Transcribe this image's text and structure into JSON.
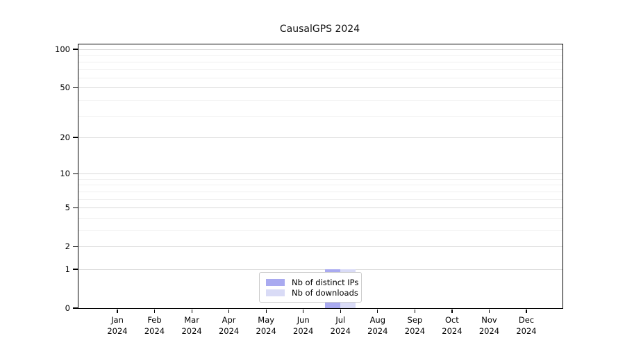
{
  "chart_data": {
    "type": "bar",
    "title": "CausalGPS 2024",
    "x_ticks": [
      {
        "month": "Jan",
        "year": "2024"
      },
      {
        "month": "Feb",
        "year": "2024"
      },
      {
        "month": "Mar",
        "year": "2024"
      },
      {
        "month": "Apr",
        "year": "2024"
      },
      {
        "month": "May",
        "year": "2024"
      },
      {
        "month": "Jun",
        "year": "2024"
      },
      {
        "month": "Jul",
        "year": "2024"
      },
      {
        "month": "Aug",
        "year": "2024"
      },
      {
        "month": "Sep",
        "year": "2024"
      },
      {
        "month": "Oct",
        "year": "2024"
      },
      {
        "month": "Nov",
        "year": "2024"
      },
      {
        "month": "Dec",
        "year": "2024"
      }
    ],
    "series": [
      {
        "name": "Nb of distinct IPs",
        "color": "#a9aaf0",
        "values": [
          0,
          0,
          0,
          0,
          0,
          0,
          1,
          0,
          0,
          0,
          0,
          0
        ]
      },
      {
        "name": "Nb of downloads",
        "color": "#d9dbf6",
        "values": [
          0,
          0,
          0,
          0,
          0,
          0,
          1,
          0,
          0,
          0,
          0,
          0
        ]
      }
    ],
    "y_ticks": [
      0,
      1,
      2,
      5,
      10,
      20,
      50,
      100
    ],
    "y_minor_ticks": [
      3,
      4,
      6,
      7,
      8,
      9,
      30,
      40,
      60,
      70,
      80,
      90
    ],
    "y_scale": "log1p",
    "ylim": [
      0,
      115
    ],
    "xlabel": "",
    "ylabel": "",
    "grid": true,
    "legend_position": "lower center",
    "style": {
      "major_grid_color": "#d9d9d9",
      "minor_grid_color": "#f0f0f0",
      "axis_color": "#000000",
      "background": "#ffffff"
    }
  }
}
